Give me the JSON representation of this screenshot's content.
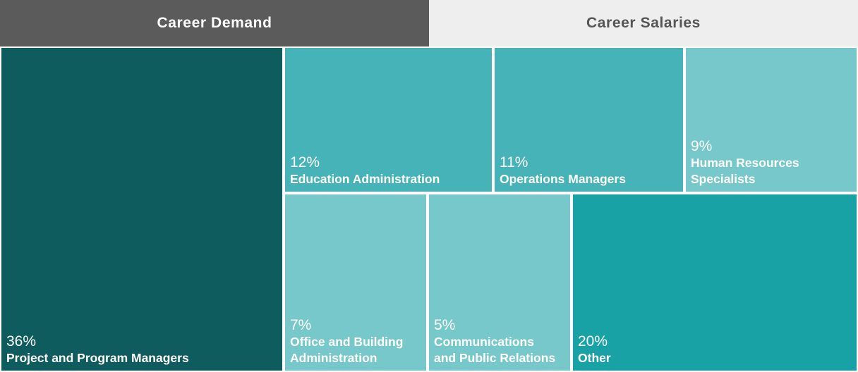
{
  "tabs": [
    {
      "label": "Career Demand",
      "active": true
    },
    {
      "label": "Career Salaries",
      "active": false
    }
  ],
  "colors": {
    "tab_active_bg": "#5b5b5b",
    "tab_inactive_bg": "#eeeeee",
    "dark_teal": "#0e5c5e",
    "medium_teal": "#45b3b8",
    "light_teal": "#76c8ca",
    "teal": "#19a2a6"
  },
  "chart_data": {
    "type": "treemap",
    "unit": "%",
    "items": [
      {
        "label": "Project and Program Managers",
        "value": 36,
        "display": "36%",
        "color": "#0e5c5e"
      },
      {
        "label": "Education Administration",
        "value": 12,
        "display": "12%",
        "color": "#45b3b8"
      },
      {
        "label": "Operations Managers",
        "value": 11,
        "display": "11%",
        "color": "#45b3b8"
      },
      {
        "label": "Human Resources\nSpecialists",
        "value": 9,
        "display": "9%",
        "color": "#76c8ca"
      },
      {
        "label": "Office and Building\nAdministration",
        "value": 7,
        "display": "7%",
        "color": "#76c8ca"
      },
      {
        "label": "Communications\nand Public Relations",
        "value": 5,
        "display": "5%",
        "color": "#76c8ca"
      },
      {
        "label": "Other",
        "value": 20,
        "display": "20%",
        "color": "#19a2a6"
      }
    ]
  }
}
